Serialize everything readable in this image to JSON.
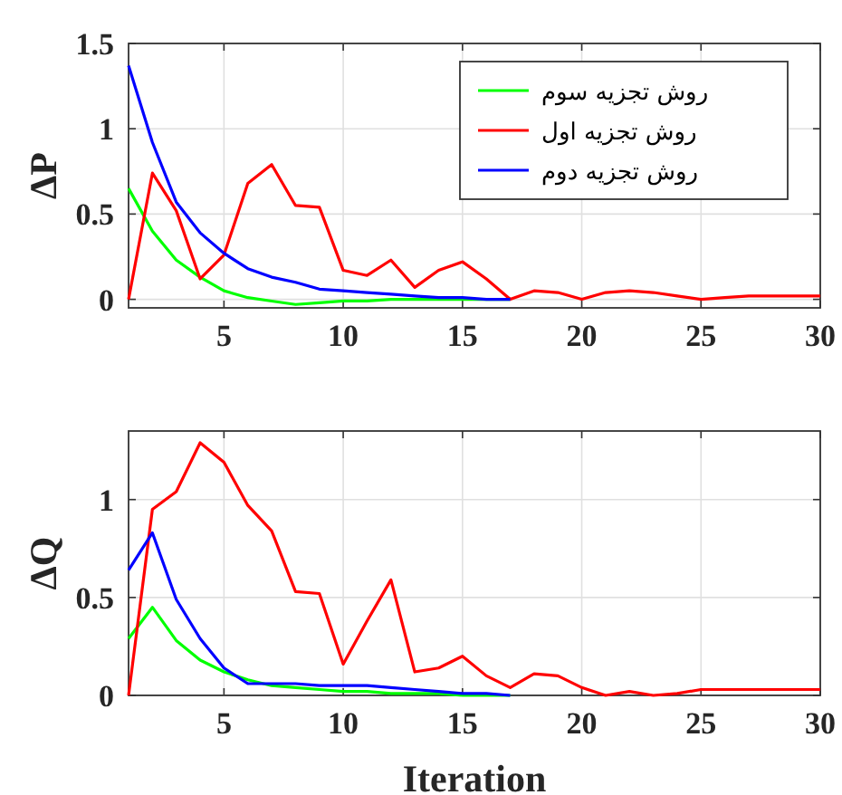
{
  "chart_data": [
    {
      "type": "line",
      "ylabel": "ΔP",
      "x": [
        1,
        2,
        3,
        4,
        5,
        6,
        7,
        8,
        9,
        10,
        11,
        12,
        13,
        14,
        15,
        16,
        17,
        18,
        19,
        20,
        21,
        22,
        23,
        24,
        25,
        26,
        27,
        28,
        29,
        30
      ],
      "xlim": [
        1,
        30
      ],
      "xticks": [
        5,
        10,
        15,
        20,
        25,
        30
      ],
      "ylim": [
        -0.05,
        1.5
      ],
      "yticks": [
        0,
        0.5,
        1,
        1.5
      ],
      "grid": true,
      "legend": "top right",
      "marker": "none",
      "line_style": "solid",
      "series": [
        {
          "name": "روش تجزیه سوم",
          "color": "#00ff00",
          "values": [
            0.65,
            0.4,
            0.23,
            0.13,
            0.05,
            0.01,
            -0.01,
            -0.03,
            -0.02,
            -0.01,
            -0.01,
            0,
            0,
            0,
            0,
            0,
            0,
            null,
            null,
            null,
            null,
            null,
            null,
            null,
            null,
            null,
            null,
            null,
            null,
            null
          ]
        },
        {
          "name": "روش تجزیه اول",
          "color": "#ff0000",
          "values": [
            0,
            0.74,
            0.52,
            0.12,
            0.26,
            0.68,
            0.79,
            0.55,
            0.54,
            0.17,
            0.14,
            0.23,
            0.07,
            0.17,
            0.22,
            0.12,
            0,
            0.05,
            0.04,
            0,
            0.04,
            0.05,
            0.04,
            0.02,
            0,
            0.01,
            0.02,
            0.02,
            0.02,
            0.02
          ]
        },
        {
          "name": "روش تجزیه دوم",
          "color": "#0000ff",
          "values": [
            1.37,
            0.92,
            0.57,
            0.39,
            0.27,
            0.18,
            0.13,
            0.1,
            0.06,
            0.05,
            0.04,
            0.03,
            0.02,
            0.01,
            0.01,
            0,
            0,
            null,
            null,
            null,
            null,
            null,
            null,
            null,
            null,
            null,
            null,
            null,
            null,
            null
          ]
        }
      ]
    },
    {
      "type": "line",
      "ylabel": "ΔQ",
      "xlabel": "Iteration",
      "x": [
        1,
        2,
        3,
        4,
        5,
        6,
        7,
        8,
        9,
        10,
        11,
        12,
        13,
        14,
        15,
        16,
        17,
        18,
        19,
        20,
        21,
        22,
        23,
        24,
        25,
        26,
        27,
        28,
        29,
        30
      ],
      "xlim": [
        1,
        30
      ],
      "xticks": [
        5,
        10,
        15,
        20,
        25,
        30
      ],
      "ylim": [
        0,
        1.35
      ],
      "yticks": [
        0,
        0.5,
        1
      ],
      "grid": true,
      "marker": "none",
      "line_style": "solid",
      "series": [
        {
          "color": "#00ff00",
          "values": [
            0.29,
            0.45,
            0.28,
            0.18,
            0.12,
            0.08,
            0.05,
            0.04,
            0.03,
            0.02,
            0.02,
            0.01,
            0.01,
            0.01,
            0,
            0,
            0,
            null,
            null,
            null,
            null,
            null,
            null,
            null,
            null,
            null,
            null,
            null,
            null,
            null
          ]
        },
        {
          "color": "#ff0000",
          "values": [
            0,
            0.95,
            1.04,
            1.29,
            1.19,
            0.97,
            0.84,
            0.53,
            0.52,
            0.16,
            0.38,
            0.59,
            0.12,
            0.14,
            0.2,
            0.1,
            0.04,
            0.11,
            0.1,
            0.04,
            0,
            0.02,
            0,
            0.01,
            0.03,
            0.03,
            0.03,
            0.03,
            0.03,
            0.03
          ]
        },
        {
          "color": "#0000ff",
          "values": [
            0.64,
            0.83,
            0.49,
            0.29,
            0.14,
            0.06,
            0.06,
            0.06,
            0.05,
            0.05,
            0.05,
            0.04,
            0.03,
            0.02,
            0.01,
            0.01,
            0,
            null,
            null,
            null,
            null,
            null,
            null,
            null,
            null,
            null,
            null,
            null,
            null,
            null
          ]
        }
      ]
    }
  ]
}
